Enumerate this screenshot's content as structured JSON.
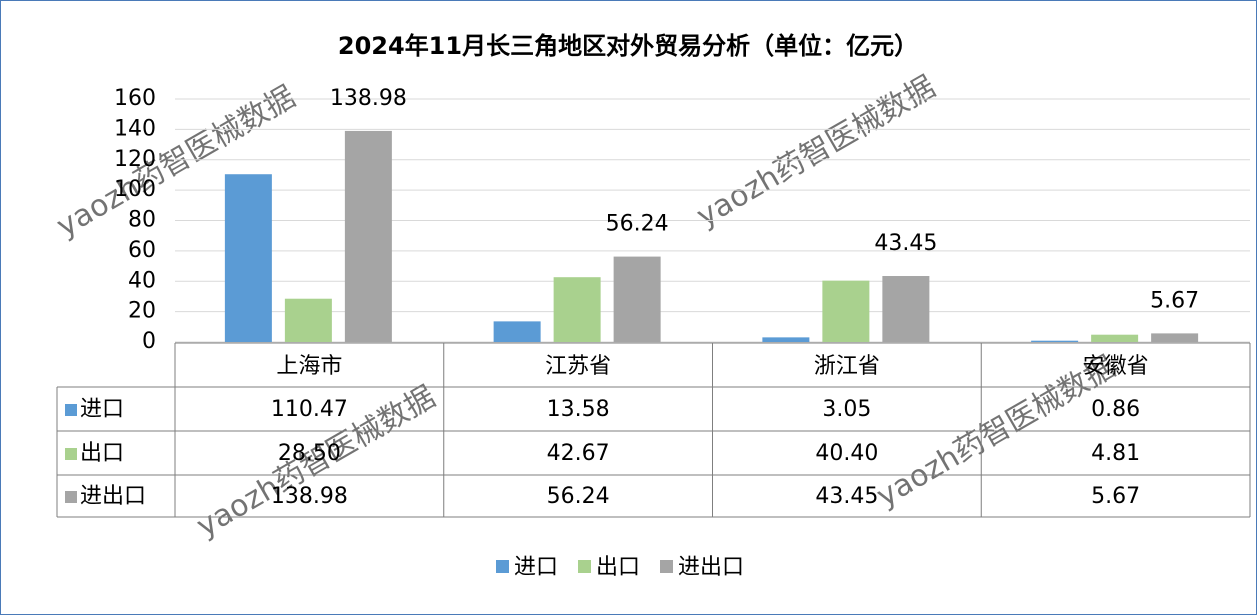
{
  "chart_data": {
    "type": "bar",
    "title": "2024年11月长三角地区对外贸易分析（单位：亿元）",
    "categories": [
      "上海市",
      "江苏省",
      "浙江省",
      "安徽省"
    ],
    "series": [
      {
        "name": "进口",
        "color": "#5b9bd5",
        "values": [
          110.47,
          13.58,
          3.05,
          0.86
        ]
      },
      {
        "name": "出口",
        "color": "#a9d18e",
        "values": [
          28.5,
          42.67,
          40.4,
          4.81
        ],
        "value_labels": [
          "28.50",
          "42.67",
          "40.40",
          "4.81"
        ]
      },
      {
        "name": "进出口",
        "color": "#a5a5a5",
        "values": [
          138.98,
          56.24,
          43.45,
          5.67
        ],
        "data_labels": true
      }
    ],
    "ylim": [
      0,
      160
    ],
    "yticks": [
      0,
      20,
      40,
      60,
      80,
      100,
      120,
      140,
      160
    ],
    "grid": true,
    "legend": "bottom",
    "data_table": true,
    "watermark": "yaozh药智医械数据"
  }
}
